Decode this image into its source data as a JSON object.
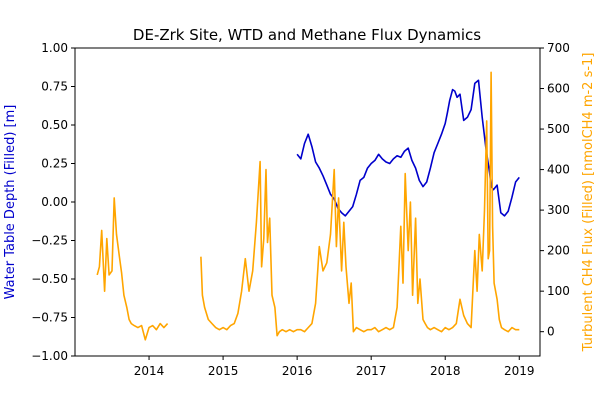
{
  "chart_data": {
    "type": "line",
    "title": "DE-Zrk Site, WTD and Methane Flux Dynamics",
    "xlabel": "",
    "x_ticks": [
      "2014",
      "2015",
      "2016",
      "2017",
      "2018",
      "2019"
    ],
    "x_tick_values": [
      2014,
      2015,
      2016,
      2017,
      2018,
      2019
    ],
    "xlim": [
      2013.0,
      2019.28
    ],
    "left_axis": {
      "label": "Water Table Depth (Filled) [m]",
      "color": "#0000cc",
      "ylim": [
        -1.0,
        1.0
      ],
      "ticks": [
        "−1.00",
        "−0.75",
        "−0.50",
        "−0.25",
        "0.00",
        "0.25",
        "0.50",
        "0.75",
        "1.00"
      ],
      "tick_values": [
        -1.0,
        -0.75,
        -0.5,
        -0.25,
        0.0,
        0.25,
        0.5,
        0.75,
        1.0
      ]
    },
    "right_axis": {
      "label": "Turbulent CH4 Flux (Filled) [nmolCH4 m-2 s-1]",
      "color": "#ffa500",
      "ylim": [
        -60,
        700
      ],
      "ticks": [
        "0",
        "100",
        "200",
        "300",
        "400",
        "500",
        "600",
        "700"
      ],
      "tick_values": [
        0,
        100,
        200,
        300,
        400,
        500,
        600,
        700
      ]
    },
    "series": [
      {
        "axis": "left",
        "color": "#0000cc",
        "x": [
          2016.0,
          2016.05,
          2016.1,
          2016.15,
          2016.2,
          2016.25,
          2016.3,
          2016.35,
          2016.4,
          2016.45,
          2016.5,
          2016.55,
          2016.6,
          2016.65,
          2016.7,
          2016.75,
          2016.8,
          2016.85,
          2016.9,
          2016.95,
          2017.0,
          2017.05,
          2017.1,
          2017.15,
          2017.2,
          2017.25,
          2017.3,
          2017.35,
          2017.4,
          2017.45,
          2017.5,
          2017.55,
          2017.6,
          2017.65,
          2017.7,
          2017.75,
          2017.8,
          2017.85,
          2017.9,
          2017.95,
          2018.0,
          2018.03,
          2018.06,
          2018.1,
          2018.13,
          2018.16,
          2018.2,
          2018.25,
          2018.3,
          2018.35,
          2018.4,
          2018.45,
          2018.5,
          2018.55,
          2018.6,
          2018.62,
          2018.65,
          2018.7,
          2018.75,
          2018.8,
          2018.85,
          2018.9,
          2018.95,
          2019.0
        ],
        "values": [
          0.31,
          0.28,
          0.38,
          0.44,
          0.36,
          0.26,
          0.22,
          0.17,
          0.11,
          0.05,
          0.02,
          -0.04,
          -0.07,
          -0.09,
          -0.06,
          -0.03,
          0.05,
          0.14,
          0.16,
          0.22,
          0.25,
          0.27,
          0.31,
          0.28,
          0.26,
          0.25,
          0.28,
          0.3,
          0.29,
          0.33,
          0.35,
          0.27,
          0.22,
          0.14,
          0.1,
          0.13,
          0.22,
          0.32,
          0.38,
          0.44,
          0.51,
          0.58,
          0.66,
          0.73,
          0.72,
          0.68,
          0.7,
          0.53,
          0.55,
          0.6,
          0.77,
          0.79,
          0.55,
          0.35,
          0.19,
          0.1,
          0.08,
          0.11,
          -0.07,
          -0.09,
          -0.06,
          0.03,
          0.13,
          0.16
        ]
      },
      {
        "axis": "right",
        "color": "#ffa500",
        "x": [
          2013.3,
          2013.33,
          2013.36,
          2013.4,
          2013.43,
          2013.46,
          2013.5,
          2013.53,
          2013.56,
          2013.6,
          2013.63,
          2013.66,
          2013.7,
          2013.73,
          2013.76,
          2013.8,
          2013.85,
          2013.9,
          2013.95,
          2014.0,
          2014.05,
          2014.1,
          2014.15,
          2014.2,
          2014.25,
          null,
          2014.7,
          2014.72,
          2014.75,
          2014.8,
          2014.85,
          2014.9,
          2014.95,
          2015.0,
          2015.05,
          2015.1,
          2015.15,
          2015.2,
          2015.25,
          2015.3,
          2015.35,
          2015.4,
          2015.45,
          2015.5,
          2015.52,
          2015.55,
          2015.58,
          2015.6,
          2015.63,
          2015.66,
          2015.7,
          2015.73,
          2015.76,
          2015.8,
          2015.85,
          2015.9,
          2015.95,
          2016.0,
          2016.05,
          2016.1,
          2016.15,
          2016.2,
          2016.25,
          2016.3,
          2016.35,
          2016.4,
          2016.45,
          2016.5,
          2016.53,
          2016.56,
          2016.6,
          2016.63,
          2016.66,
          2016.7,
          2016.73,
          2016.76,
          2016.8,
          2016.85,
          2016.9,
          2016.95,
          2017.0,
          2017.05,
          2017.1,
          2017.15,
          2017.2,
          2017.25,
          2017.3,
          2017.35,
          2017.4,
          2017.43,
          2017.46,
          2017.5,
          2017.53,
          2017.56,
          2017.6,
          2017.63,
          2017.66,
          2017.7,
          2017.73,
          2017.76,
          2017.8,
          2017.85,
          2017.9,
          2017.95,
          2018.0,
          2018.05,
          2018.1,
          2018.15,
          2018.2,
          2018.25,
          2018.3,
          2018.35,
          2018.4,
          2018.43,
          2018.46,
          2018.5,
          2018.53,
          2018.56,
          2018.58,
          2018.6,
          2018.62,
          2018.64,
          2018.66,
          2018.7,
          2018.73,
          2018.76,
          2018.8,
          2018.85,
          2018.9,
          2018.95,
          2019.0
        ],
        "values": [
          140,
          160,
          250,
          100,
          230,
          140,
          150,
          330,
          240,
          185,
          145,
          90,
          60,
          30,
          20,
          15,
          10,
          15,
          -20,
          10,
          15,
          5,
          20,
          10,
          20,
          null,
          185,
          90,
          60,
          30,
          20,
          10,
          5,
          10,
          5,
          15,
          20,
          45,
          100,
          180,
          100,
          150,
          270,
          420,
          160,
          230,
          400,
          220,
          280,
          90,
          60,
          -10,
          0,
          5,
          0,
          5,
          0,
          5,
          5,
          0,
          10,
          20,
          70,
          210,
          150,
          170,
          240,
          400,
          210,
          330,
          150,
          270,
          160,
          70,
          120,
          0,
          10,
          5,
          0,
          5,
          5,
          10,
          0,
          5,
          10,
          5,
          10,
          60,
          260,
          120,
          390,
          200,
          320,
          90,
          280,
          70,
          130,
          30,
          20,
          10,
          5,
          10,
          5,
          0,
          10,
          5,
          10,
          20,
          80,
          40,
          20,
          10,
          200,
          100,
          240,
          150,
          300,
          520,
          180,
          200,
          640,
          260,
          120,
          80,
          30,
          10,
          5,
          0,
          10,
          5,
          5
        ]
      }
    ]
  }
}
